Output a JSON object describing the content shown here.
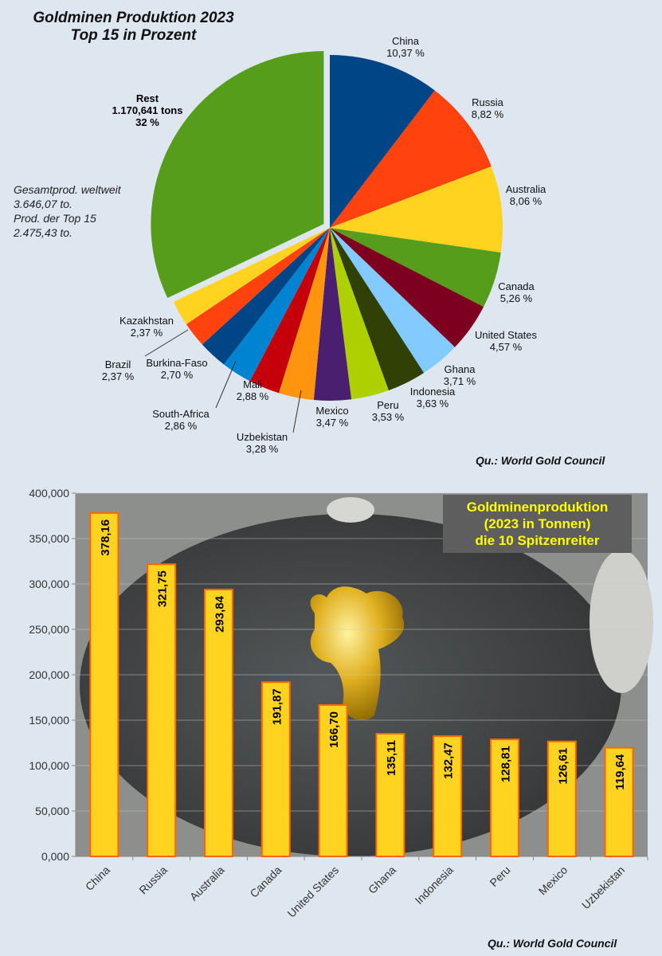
{
  "pie_chart": {
    "type": "pie",
    "title_lines": [
      "Goldminen Produktion 2023",
      "Top 15 in Prozent"
    ],
    "slices": [
      {
        "label": "China",
        "value_text": "10,37 %",
        "value": 10.37,
        "color": "#004586"
      },
      {
        "label": "Russia",
        "value_text": "8,82 %",
        "value": 8.82,
        "color": "#ff420e"
      },
      {
        "label": "Australia",
        "value_text": "8,06 %",
        "value": 8.06,
        "color": "#ffd320"
      },
      {
        "label": "Canada",
        "value_text": "5,26 %",
        "value": 5.26,
        "color": "#579d1c"
      },
      {
        "label": "United States",
        "value_text": "4,57 %",
        "value": 4.57,
        "color": "#7e0021"
      },
      {
        "label": "Ghana",
        "value_text": "3,71 %",
        "value": 3.71,
        "color": "#83caff"
      },
      {
        "label": "Indonesia",
        "value_text": "3,63 %",
        "value": 3.63,
        "color": "#314004"
      },
      {
        "label": "Peru",
        "value_text": "3,53 %",
        "value": 3.53,
        "color": "#aecf00"
      },
      {
        "label": "Mexico",
        "value_text": "3,47 %",
        "value": 3.47,
        "color": "#4b1f6f"
      },
      {
        "label": "Uzbekistan",
        "value_text": "3,28 %",
        "value": 3.28,
        "color": "#ff950e"
      },
      {
        "label": "Mali",
        "value_text": "2,88 %",
        "value": 2.88,
        "color": "#c5000b"
      },
      {
        "label": "South-Africa",
        "value_text": "2,86 %",
        "value": 2.86,
        "color": "#0084d1"
      },
      {
        "label": "Burkina-Faso",
        "value_text": "2,70 %",
        "value": 2.7,
        "color": "#004586"
      },
      {
        "label": "Brazil",
        "value_text": "2,37 %",
        "value": 2.37,
        "color": "#ff420e"
      },
      {
        "label": "Kazakhstan",
        "value_text": "2,37 %",
        "value": 2.37,
        "color": "#ffd320"
      },
      {
        "label": "Rest",
        "value_text": "32 %",
        "value": 32,
        "color": "#579d1c",
        "tons_text": "1.170,641 tons",
        "exploded": true
      }
    ],
    "note_lines": [
      "Gesamtprod. weltweit",
      "3.646,07 to.",
      "Prod. der Top 15",
      "2.475,43 to."
    ],
    "source": "Qu.: World Gold Council"
  },
  "chart_data": {
    "type": "bar",
    "title_lines": [
      "Goldminenproduktion",
      "(2023 in Tonnen)",
      "die 10 Spitzenreiter"
    ],
    "categories": [
      "China",
      "Russia",
      "Australia",
      "Canada",
      "United States",
      "Ghana",
      "Indonesia",
      "Peru",
      "Mexico",
      "Uzbekistan"
    ],
    "values": [
      378.16,
      321.75,
      293.84,
      191.87,
      166.7,
      135.11,
      132.47,
      128.81,
      126.61,
      119.64
    ],
    "data_labels": [
      "378,16",
      "321,75",
      "293,84",
      "191,87",
      "166,70",
      "135,11",
      "132,47",
      "128,81",
      "126,61",
      "119,64"
    ],
    "ylim": [
      0,
      400
    ],
    "yticks": [
      0,
      50,
      100,
      150,
      200,
      250,
      300,
      350,
      400
    ],
    "ytick_labels": [
      "0,000",
      "50,000",
      "100,000",
      "150,000",
      "200,000",
      "250,000",
      "300,000",
      "350,000",
      "400,000"
    ],
    "bar_color": "#ffd320",
    "bar_edge_color": "#ff6600",
    "title_color": "#ffff00",
    "grid": true,
    "source": "Qu.: World Gold Council"
  }
}
